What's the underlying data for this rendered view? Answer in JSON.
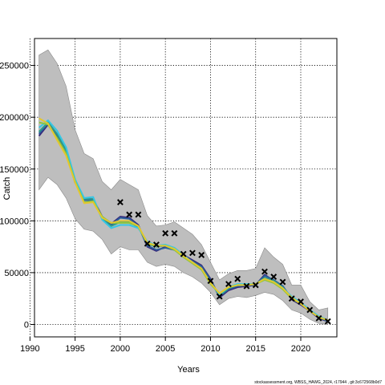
{
  "chart_data": {
    "type": "line",
    "xlabel": "Years",
    "ylabel": "Catch",
    "xlim": [
      1990.5,
      2024.0
    ],
    "ylim": [
      -12000,
      276000
    ],
    "xticks": [
      1990,
      1995,
      2000,
      2005,
      2010,
      2015,
      2020
    ],
    "yticks": [
      0,
      50000,
      100000,
      150000,
      200000,
      250000
    ],
    "grid": true,
    "footer": "stockassessment.org, WBSS_HAWG_2024, r17944 , git:3c672568b0d7",
    "colors": {
      "band": "#bebebe",
      "observed": "#000000",
      "series": [
        "#36257a",
        "#2b5f9a",
        "#2f9a8a",
        "#36c6e4",
        "#8cc63f",
        "#e3c72f"
      ]
    },
    "band": {
      "x": [
        1991,
        1992,
        1993,
        1994,
        1995,
        1996,
        1997,
        1998,
        1999,
        2000,
        2001,
        2002,
        2003,
        2004,
        2005,
        2006,
        2007,
        2008,
        2009,
        2010,
        2011,
        2012,
        2013,
        2014,
        2015,
        2016,
        2017,
        2018,
        2019,
        2020,
        2021,
        2022,
        2023
      ],
      "lower": [
        130000,
        142000,
        135000,
        122000,
        102000,
        92000,
        90000,
        82000,
        68000,
        75000,
        72000,
        72000,
        60000,
        56000,
        58000,
        56000,
        50000,
        46000,
        40000,
        31000,
        19000,
        25000,
        27000,
        26000,
        28000,
        31000,
        29000,
        23000,
        14000,
        11000,
        5000,
        1000,
        0
      ],
      "upper": [
        260000,
        265000,
        252000,
        230000,
        188000,
        165000,
        160000,
        138000,
        130000,
        140000,
        135000,
        130000,
        105000,
        95000,
        96000,
        99000,
        93000,
        87000,
        77000,
        60000,
        43000,
        49000,
        52000,
        52000,
        54000,
        74000,
        65000,
        58000,
        38000,
        38000,
        22000,
        14000,
        16000
      ]
    },
    "series": [
      {
        "values": [
          182000,
          193000,
          180000,
          166000,
          137000,
          121000,
          121000,
          104000,
          97000,
          104000,
          103000,
          96000,
          75000,
          71000,
          75000,
          73000,
          67000,
          62000,
          57000,
          44000,
          26000,
          33000,
          36000,
          37000,
          38000,
          48000,
          42000,
          37000,
          24000,
          19000,
          13000,
          6000,
          3000
        ]
      },
      {
        "values": [
          184000,
          194000,
          182000,
          167000,
          138000,
          120000,
          120000,
          103000,
          96000,
          103000,
          102000,
          95000,
          76000,
          72000,
          74000,
          72000,
          66000,
          61000,
          56000,
          43000,
          27000,
          34000,
          37000,
          38000,
          38000,
          47000,
          43000,
          37000,
          25000,
          20000,
          13000,
          7000,
          3000
        ]
      },
      {
        "values": [
          186000,
          195000,
          184000,
          168000,
          139000,
          121000,
          121000,
          102000,
          95000,
          99000,
          99000,
          94000,
          78000,
          75000,
          76000,
          73000,
          66000,
          60000,
          54000,
          41000,
          28000,
          35000,
          38000,
          38000,
          39000,
          45000,
          42000,
          36000,
          26000,
          21000,
          14000,
          7000,
          4000
        ]
      },
      {
        "values": [
          190000,
          197000,
          187000,
          171000,
          140000,
          122000,
          123000,
          101000,
          93000,
          96000,
          96000,
          93000,
          80000,
          76000,
          77000,
          74000,
          67000,
          60000,
          53000,
          40000,
          29000,
          36000,
          39000,
          39000,
          39000,
          44000,
          41000,
          35000,
          27000,
          21000,
          14000,
          8000,
          4000
        ]
      },
      {
        "values": [
          195000,
          193000,
          180000,
          165000,
          138000,
          118000,
          119000,
          104000,
          98000,
          98000,
          98000,
          95000,
          78000,
          76000,
          76000,
          72000,
          65000,
          59000,
          53000,
          39000,
          30000,
          36000,
          38000,
          38000,
          39000,
          43000,
          40000,
          34000,
          25000,
          20000,
          13000,
          7000,
          4000
        ]
      },
      {
        "values": [
          199000,
          194000,
          178000,
          163000,
          137000,
          117000,
          118000,
          103000,
          98000,
          100000,
          100000,
          95000,
          79000,
          76000,
          76000,
          73000,
          66000,
          60000,
          54000,
          40000,
          30000,
          36000,
          38000,
          38000,
          39000,
          44000,
          41000,
          35000,
          26000,
          20000,
          13000,
          7000,
          4000
        ]
      }
    ],
    "observed": {
      "x": [
        2000,
        2001,
        2002,
        2003,
        2004,
        2005,
        2006,
        2007,
        2008,
        2009,
        2010,
        2011,
        2012,
        2013,
        2014,
        2015,
        2016,
        2017,
        2018,
        2019,
        2020,
        2021,
        2022,
        2023
      ],
      "y": [
        118000,
        106000,
        106000,
        78000,
        77000,
        88000,
        88000,
        68000,
        69000,
        67000,
        42000,
        27000,
        39000,
        44000,
        37000,
        38000,
        51000,
        46000,
        41000,
        25000,
        22000,
        14000,
        6000,
        3000
      ]
    }
  }
}
